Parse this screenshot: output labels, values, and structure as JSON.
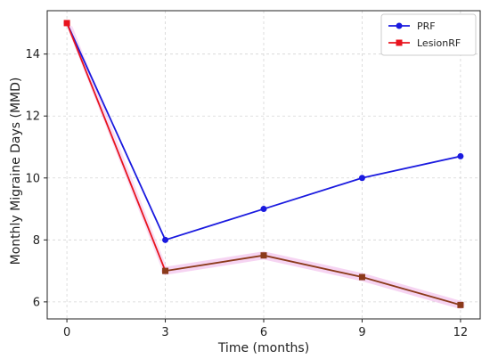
{
  "chart_data": {
    "type": "line",
    "title": "",
    "xlabel": "Time (months)",
    "ylabel": "Monthly Migraine Days (MMD)",
    "x": [
      0,
      3,
      6,
      9,
      12
    ],
    "x_tick_labels": [
      "0",
      "3",
      "6",
      "9",
      "12"
    ],
    "y_tick_labels": [
      "6",
      "8",
      "10",
      "12",
      "14"
    ],
    "xlim": [
      -0.6,
      12.6
    ],
    "ylim": [
      5.45,
      15.4
    ],
    "y_ticks": [
      6,
      8,
      10,
      12,
      14
    ],
    "grid": true,
    "legend_position": "top-right",
    "series": [
      {
        "name": "PRF",
        "values": [
          15,
          8,
          9,
          10,
          10.7
        ],
        "color": "#1a1adf",
        "marker": "circle"
      },
      {
        "name": "LesionRF",
        "values": [
          15,
          7,
          7.5,
          6.8,
          5.9
        ],
        "color": "#e8141e",
        "marker": "square"
      }
    ]
  }
}
